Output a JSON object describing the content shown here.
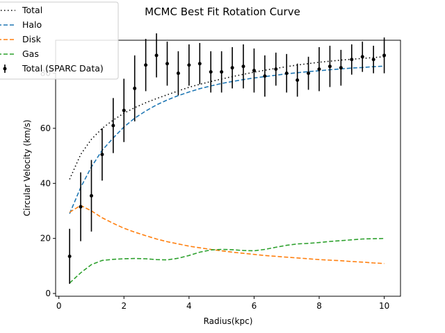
{
  "chart_data": {
    "type": "line",
    "title": "MCMC Best Fit Rotation Curve",
    "xlabel": "Radius(kpc)",
    "ylabel": "Circular Velocity (km/s)",
    "xlim": [
      -0.1,
      10.5
    ],
    "ylim": [
      -1,
      92
    ],
    "xticks": [
      0,
      2,
      4,
      6,
      8,
      10
    ],
    "yticks": [
      0,
      20,
      40,
      60,
      80
    ],
    "grid": false,
    "legend_position": "top-left",
    "series": [
      {
        "name": "Total",
        "style": "dotted",
        "color": "#000000",
        "x": [
          0.33,
          0.67,
          1.0,
          1.33,
          1.67,
          2.0,
          2.33,
          2.67,
          3.0,
          3.33,
          3.67,
          4.0,
          4.33,
          4.67,
          5.0,
          5.33,
          5.67,
          6.0,
          6.33,
          6.67,
          7.0,
          7.33,
          7.67,
          8.0,
          8.33,
          8.67,
          9.0,
          9.33,
          9.67,
          10.0
        ],
        "y": [
          41.5,
          50.5,
          56.0,
          60.0,
          63.0,
          65.5,
          67.5,
          69.3,
          70.8,
          72.2,
          73.6,
          74.9,
          76.0,
          77.0,
          77.9,
          78.8,
          79.6,
          80.4,
          81.1,
          81.8,
          82.4,
          83.0,
          83.5,
          84.0,
          84.4,
          84.8,
          85.1,
          85.4,
          85.7,
          86.0
        ]
      },
      {
        "name": "Halo",
        "style": "dashed",
        "color": "#1f77b4",
        "x": [
          0.33,
          0.67,
          1.0,
          1.33,
          1.67,
          2.0,
          2.33,
          2.67,
          3.0,
          3.33,
          3.67,
          4.0,
          4.33,
          4.67,
          5.0,
          5.33,
          5.67,
          6.0,
          6.33,
          6.67,
          7.0,
          7.33,
          7.67,
          8.0,
          8.33,
          8.67,
          9.0,
          9.33,
          9.67,
          10.0
        ],
        "y": [
          29.0,
          38.5,
          46.0,
          52.0,
          56.5,
          60.5,
          63.7,
          66.3,
          68.5,
          70.3,
          71.9,
          73.2,
          74.4,
          75.4,
          76.3,
          77.0,
          77.7,
          78.3,
          78.8,
          79.3,
          79.8,
          80.2,
          80.6,
          80.9,
          81.3,
          81.6,
          81.9,
          82.1,
          82.4,
          82.6
        ]
      },
      {
        "name": "Disk",
        "style": "dashed",
        "color": "#ff7f0e",
        "x": [
          0.33,
          0.67,
          1.0,
          1.33,
          1.67,
          2.0,
          2.33,
          2.67,
          3.0,
          3.33,
          3.67,
          4.0,
          4.33,
          4.67,
          5.0,
          5.33,
          5.67,
          6.0,
          6.33,
          6.67,
          7.0,
          7.33,
          7.67,
          8.0,
          8.33,
          8.67,
          9.0,
          9.33,
          9.67,
          10.0
        ],
        "y": [
          29.5,
          32.0,
          30.0,
          27.5,
          25.5,
          23.7,
          22.3,
          21.0,
          19.8,
          18.8,
          18.0,
          17.2,
          16.6,
          16.0,
          15.5,
          15.0,
          14.6,
          14.2,
          13.8,
          13.5,
          13.2,
          12.9,
          12.6,
          12.3,
          12.1,
          11.9,
          11.6,
          11.4,
          11.1,
          10.9
        ]
      },
      {
        "name": "Gas",
        "style": "dashed",
        "color": "#2ca02c",
        "x": [
          0.33,
          0.67,
          1.0,
          1.33,
          1.67,
          2.0,
          2.33,
          2.67,
          3.0,
          3.33,
          3.67,
          4.0,
          4.33,
          4.67,
          5.0,
          5.33,
          5.67,
          6.0,
          6.33,
          6.67,
          7.0,
          7.33,
          7.67,
          8.0,
          8.33,
          8.67,
          9.0,
          9.33,
          9.67,
          10.0
        ],
        "y": [
          3.8,
          7.5,
          10.5,
          12.0,
          12.4,
          12.6,
          12.7,
          12.6,
          12.3,
          12.2,
          12.8,
          13.8,
          15.0,
          15.8,
          16.0,
          15.9,
          15.6,
          15.5,
          16.0,
          16.8,
          17.5,
          18.0,
          18.2,
          18.5,
          18.9,
          19.2,
          19.5,
          19.8,
          19.9,
          20.0
        ]
      },
      {
        "name": "Total (SPARC Data)",
        "style": "errorbar",
        "color": "#000000",
        "x": [
          0.33,
          0.67,
          1.0,
          1.33,
          1.67,
          2.0,
          2.33,
          2.67,
          3.0,
          3.33,
          3.67,
          4.0,
          4.33,
          4.67,
          5.0,
          5.33,
          5.67,
          6.0,
          6.33,
          6.67,
          7.0,
          7.33,
          7.67,
          8.0,
          8.33,
          8.67,
          9.0,
          9.33,
          9.67,
          10.0
        ],
        "y": [
          13.5,
          31.5,
          35.5,
          50.5,
          61.0,
          66.5,
          74.5,
          83.0,
          86.5,
          83.5,
          80.0,
          83.0,
          83.5,
          80.5,
          80.5,
          82.0,
          82.5,
          81.0,
          79.0,
          81.5,
          80.0,
          77.5,
          80.0,
          81.5,
          82.5,
          82.0,
          85.0,
          86.0,
          85.0,
          86.5
        ],
        "yerr": [
          10,
          12.5,
          13,
          9.5,
          10,
          11.5,
          12,
          9.5,
          8,
          8,
          8,
          7.5,
          7.5,
          7.5,
          7.5,
          7.5,
          8,
          8,
          7.5,
          6,
          7,
          6,
          6,
          8,
          7.5,
          6.5,
          5.5,
          5.5,
          5,
          6.5
        ]
      }
    ]
  }
}
